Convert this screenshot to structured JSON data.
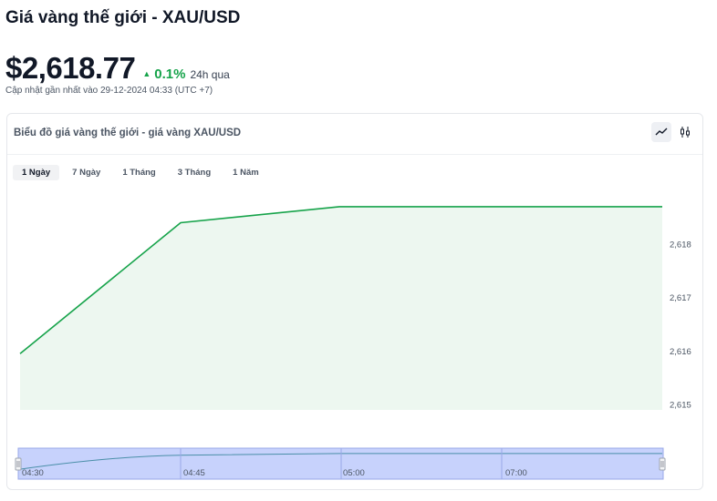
{
  "header": {
    "title": "Giá vàng thế giới - XAU/USD",
    "price": "$2,618.77",
    "change": "0.1%",
    "change_period": "24h qua",
    "updated": "Cập nhật gần nhất vào 29-12-2024 04:33 (UTC +7)"
  },
  "card": {
    "title": "Biểu đồ giá vàng thế giới - giá vàng XAU/USD",
    "tabs": [
      {
        "label": "1 Ngày",
        "active": true
      },
      {
        "label": "7 Ngày",
        "active": false
      },
      {
        "label": "1 Tháng",
        "active": false
      },
      {
        "label": "3 Tháng",
        "active": false
      },
      {
        "label": "1 Năm",
        "active": false
      }
    ],
    "view_icons": [
      "line-chart-icon",
      "candlestick-chart-icon"
    ]
  },
  "colors": {
    "line": "#16a34a",
    "area_fill": "#edf7f0",
    "positive": "#16a34a",
    "navigator_fill": "#c7d2fc",
    "navigator_line": "#4a8fa8"
  },
  "chart_data": {
    "type": "area",
    "x": [
      "04:30",
      "04:45",
      "05:00",
      "07:00"
    ],
    "values": [
      2615.95,
      2618.4,
      2618.7,
      2618.7
    ],
    "ylim": [
      2615,
      2619
    ],
    "yticks": [
      2615,
      2616,
      2617,
      2618
    ],
    "ytick_labels": [
      "2,615",
      "2,616",
      "2,617",
      "2,618"
    ],
    "navigator_labels": [
      "04:30",
      "04:45",
      "05:00",
      "07:00"
    ],
    "grid": false,
    "title": ""
  }
}
